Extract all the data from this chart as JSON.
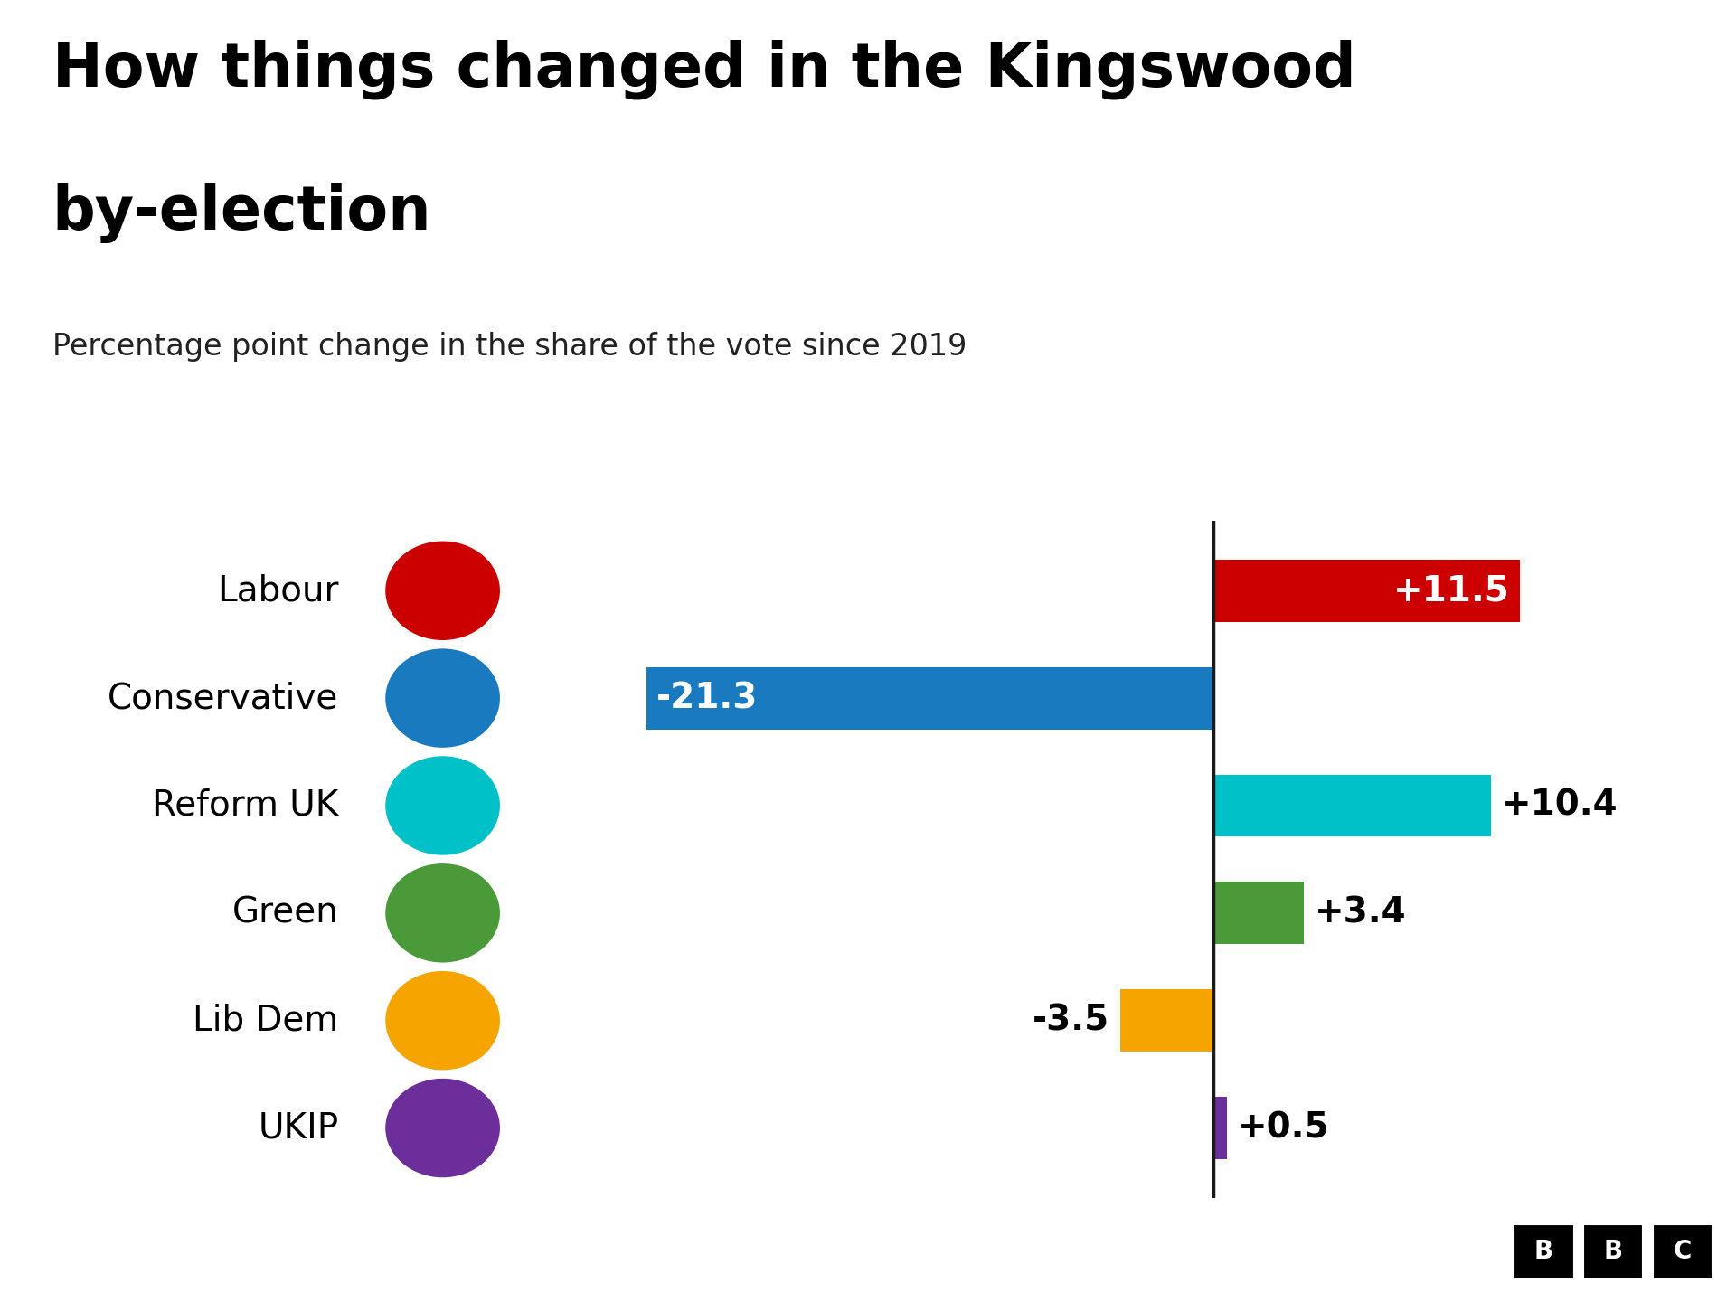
{
  "title_line1": "How things changed in the Kingswood",
  "title_line2": "by-election",
  "subtitle": "Percentage point change in the share of the vote since 2019",
  "parties": [
    "Labour",
    "Conservative",
    "Reform UK",
    "Green",
    "Lib Dem",
    "UKIP"
  ],
  "values": [
    11.5,
    -21.3,
    10.4,
    3.4,
    -3.5,
    0.5
  ],
  "colors": [
    "#cc0000",
    "#1a7abf",
    "#00c0c8",
    "#4a9a3a",
    "#f5a400",
    "#6b2e9a"
  ],
  "background_color": "#ffffff",
  "zero_line_color": "#1a1a1a",
  "bar_height": 0.58,
  "title_fontsize": 48,
  "subtitle_fontsize": 24,
  "party_fontsize": 28,
  "value_fontsize": 28,
  "xlim": [
    -26,
    17
  ],
  "ylim": [
    -0.65,
    5.65
  ]
}
